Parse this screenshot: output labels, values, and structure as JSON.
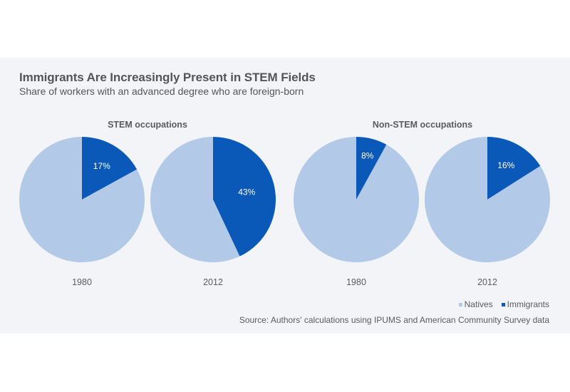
{
  "chart_data": {
    "type": "pie",
    "title": "Immigrants Are Increasingly Present in STEM Fields",
    "subtitle": "Share of workers with an advanced degree who are foreign-born",
    "legend": {
      "position": "bottom-right",
      "entries": [
        {
          "name": "Natives",
          "color": "#b3c9e8"
        },
        {
          "name": "Immigrants",
          "color": "#0a58b8"
        }
      ]
    },
    "groups": [
      {
        "label": "STEM occupations",
        "pies": [
          {
            "year": "1980",
            "slices": [
              {
                "name": "Immigrants",
                "value": 17,
                "label": "17%"
              },
              {
                "name": "Natives",
                "value": 83
              }
            ]
          },
          {
            "year": "2012",
            "slices": [
              {
                "name": "Immigrants",
                "value": 43,
                "label": "43%"
              },
              {
                "name": "Natives",
                "value": 57
              }
            ]
          }
        ]
      },
      {
        "label": "Non-STEM occupations",
        "pies": [
          {
            "year": "1980",
            "slices": [
              {
                "name": "Immigrants",
                "value": 8,
                "label": "8%"
              },
              {
                "name": "Natives",
                "value": 92
              }
            ]
          },
          {
            "year": "2012",
            "slices": [
              {
                "name": "Immigrants",
                "value": 16,
                "label": "16%"
              },
              {
                "name": "Natives",
                "value": 84
              }
            ]
          }
        ]
      }
    ],
    "source": "Source: Authors' calculations using IPUMS and American Community Survey data"
  }
}
